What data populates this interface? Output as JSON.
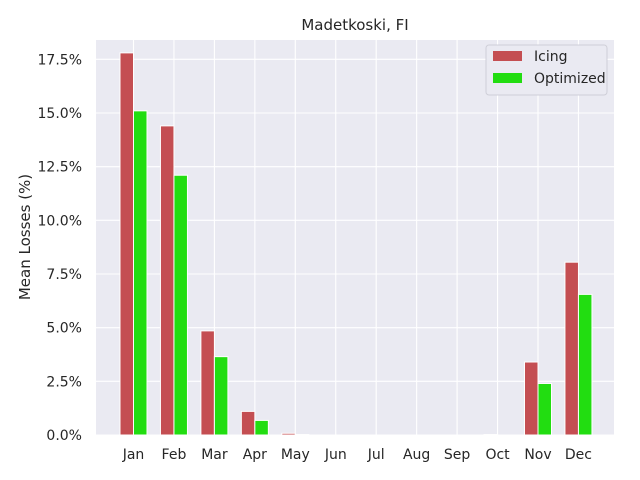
{
  "chart_data": {
    "type": "bar",
    "title": "Madetkoski, FI",
    "xlabel": "",
    "ylabel": "Mean Losses (%)",
    "ylim": [
      0,
      18.4
    ],
    "yticks": [
      "0.0%",
      "2.5%",
      "5.0%",
      "7.5%",
      "10.0%",
      "12.5%",
      "15.0%",
      "17.5%"
    ],
    "ytick_values": [
      0,
      2.5,
      5.0,
      7.5,
      10.0,
      12.5,
      15.0,
      17.5
    ],
    "categories": [
      "Jan",
      "Feb",
      "Mar",
      "Apr",
      "May",
      "Jun",
      "Jul",
      "Aug",
      "Sep",
      "Oct",
      "Nov",
      "Dec"
    ],
    "series": [
      {
        "name": "Icing",
        "color": "#c44e52",
        "values": [
          17.8,
          14.4,
          4.85,
          1.1,
          0.08,
          0,
          0,
          0,
          0,
          0.02,
          3.4,
          8.05
        ]
      },
      {
        "name": "Optimized",
        "color": "#22dd11",
        "values": [
          15.1,
          12.1,
          3.65,
          0.68,
          0.02,
          0,
          0,
          0,
          0,
          0.0,
          2.4,
          6.55
        ]
      }
    ],
    "grid": true,
    "legend": "top-right",
    "background": "#eaeaf2"
  }
}
